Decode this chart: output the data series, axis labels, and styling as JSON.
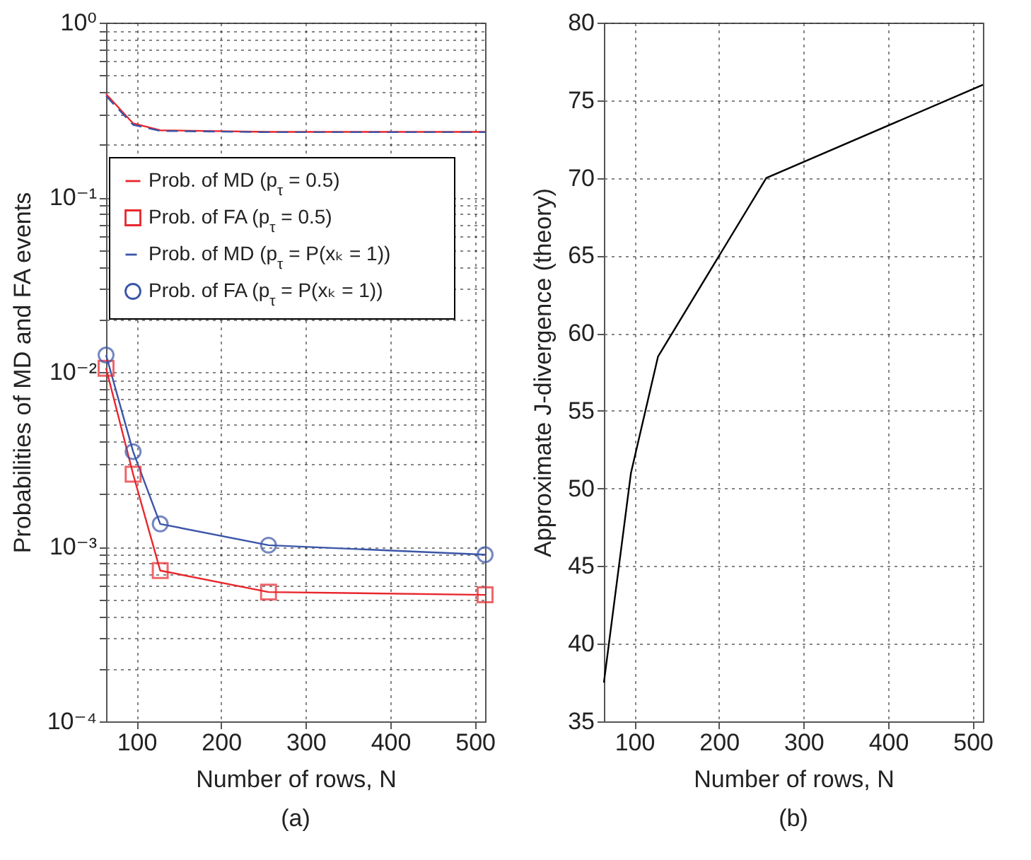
{
  "chart_data": [
    {
      "type": "line",
      "xlabel": "Number of rows, N",
      "ylabel": "Probabilities of MD and FA events",
      "annotations": [
        "(a)"
      ],
      "x": [
        64,
        96,
        128,
        256,
        512
      ],
      "xlim": [
        64,
        512
      ],
      "xticks": [
        100,
        200,
        300,
        400,
        500
      ],
      "log": "y",
      "ylim": [
        0.0001,
        1
      ],
      "yticks": [
        {
          "value": 0.0001,
          "label": "10⁻⁴"
        },
        {
          "value": 0.0002,
          "label": null
        },
        {
          "value": 0.0003,
          "label": null
        },
        {
          "value": 0.0004,
          "label": null
        },
        {
          "value": 0.0005,
          "label": null
        },
        {
          "value": 0.0006,
          "label": null
        },
        {
          "value": 0.0007,
          "label": null
        },
        {
          "value": 0.0008,
          "label": null
        },
        {
          "value": 0.0009,
          "label": null
        },
        {
          "value": 0.001,
          "label": "10⁻³"
        },
        {
          "value": 0.002,
          "label": null
        },
        {
          "value": 0.003,
          "label": null
        },
        {
          "value": 0.004,
          "label": null
        },
        {
          "value": 0.005,
          "label": null
        },
        {
          "value": 0.006,
          "label": null
        },
        {
          "value": 0.007,
          "label": null
        },
        {
          "value": 0.008,
          "label": null
        },
        {
          "value": 0.009,
          "label": null
        },
        {
          "value": 0.01,
          "label": "10⁻²"
        },
        {
          "value": 0.02,
          "label": null
        },
        {
          "value": 0.03,
          "label": null
        },
        {
          "value": 0.04,
          "label": null
        },
        {
          "value": 0.05,
          "label": null
        },
        {
          "value": 0.06,
          "label": null
        },
        {
          "value": 0.07,
          "label": null
        },
        {
          "value": 0.08,
          "label": null
        },
        {
          "value": 0.09,
          "label": null
        },
        {
          "value": 0.1,
          "label": "10⁻¹"
        },
        {
          "value": 0.2,
          "label": null
        },
        {
          "value": 0.3,
          "label": null
        },
        {
          "value": 0.4,
          "label": null
        },
        {
          "value": 0.5,
          "label": null
        },
        {
          "value": 0.6,
          "label": null
        },
        {
          "value": 0.7,
          "label": null
        },
        {
          "value": 0.8,
          "label": null
        },
        {
          "value": 0.9,
          "label": null
        },
        {
          "value": 1,
          "label": "10⁰"
        }
      ],
      "grid": true,
      "legend": "top",
      "series": [
        {
          "name": "Prob. of MD (p$_{τ}$ = 0.5)",
          "color": "#e8262d",
          "line_style": "solid",
          "marker": "none",
          "values": [
            0.39,
            0.265,
            0.242,
            0.237,
            0.237
          ]
        },
        {
          "name": "Prob. of FA (p$_{τ}$ = 0.5)",
          "color": "#e8262d",
          "line_style": "solid",
          "marker": "square",
          "values": [
            0.0105,
            0.0026,
            0.00073,
            0.00055,
            0.00053
          ]
        },
        {
          "name": "Prob. of MD (p$_{τ}$ = P(xₖ = 1))",
          "color": "#3a55a8",
          "line_style": "dashed",
          "marker": "none",
          "values": [
            0.38,
            0.26,
            0.24,
            0.236,
            0.236
          ]
        },
        {
          "name": "Prob. of FA (p$_{τ}$ = P(xₖ = 1))",
          "color": "#3a55a8",
          "line_style": "solid",
          "marker": "circle",
          "values": [
            0.0125,
            0.0035,
            0.00135,
            0.00102,
            0.0009
          ]
        }
      ]
    },
    {
      "type": "line",
      "xlabel": "Number of rows, N",
      "ylabel": "Approximate J-divergence (theory)",
      "annotations": [
        "(b)"
      ],
      "x": [
        64,
        96,
        128,
        256,
        512
      ],
      "xlim": [
        64,
        512
      ],
      "xticks": [
        100,
        200,
        300,
        400,
        500
      ],
      "ylim": [
        35,
        80
      ],
      "yticks": [
        35,
        40,
        45,
        50,
        55,
        60,
        65,
        70,
        75,
        80
      ],
      "grid": true,
      "series": [
        {
          "color": "#000000",
          "line_style": "solid",
          "marker": "none",
          "values": [
            37.5,
            51,
            58.5,
            70,
            76
          ]
        }
      ]
    }
  ]
}
